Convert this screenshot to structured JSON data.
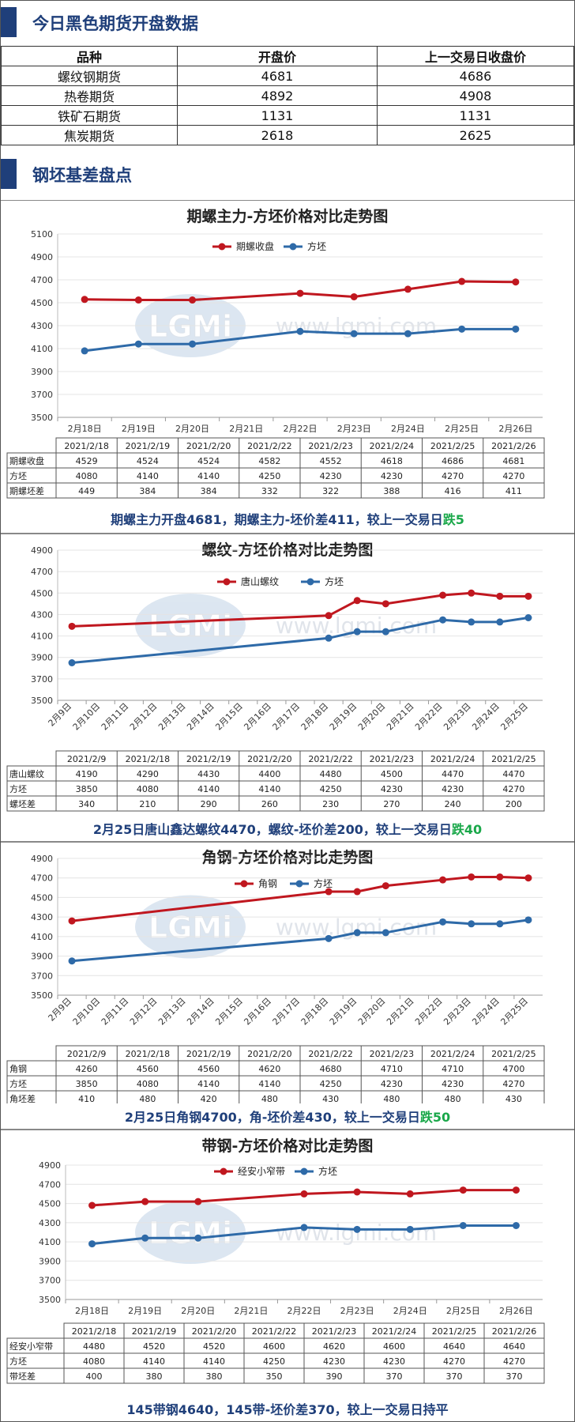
{
  "sections": {
    "open_data_title": "今日黑色期货开盘数据",
    "basis_title": "钢坯基差盘点"
  },
  "open_table": {
    "headers": [
      "品种",
      "开盘价",
      "上一交易日收盘价"
    ],
    "rows": [
      [
        "螺纹钢期货",
        "4681",
        "4686"
      ],
      [
        "热卷期货",
        "4892",
        "4908"
      ],
      [
        "铁矿石期货",
        "1131",
        "1131"
      ],
      [
        "焦炭期货",
        "2618",
        "2625"
      ]
    ]
  },
  "colors": {
    "red": "#c0171f",
    "blue": "#2e6aa8",
    "accent": "#1f3f7a",
    "down": "#1aa84a"
  },
  "watermark": {
    "logo": "LGMi",
    "url": "www.lgmi.com"
  },
  "chart_data": [
    {
      "type": "line",
      "title": "期螺主力-方坯价格对比走势图",
      "categories": [
        "2月18日",
        "2月19日",
        "2月20日",
        "2月21日",
        "2月22日",
        "2月23日",
        "2月24日",
        "2月25日",
        "2月26日"
      ],
      "series": [
        {
          "name": "期螺收盘",
          "color": "#c0171f",
          "values": [
            4529,
            4524,
            4524,
            null,
            4582,
            4552,
            4618,
            4686,
            4681
          ]
        },
        {
          "name": "方坯",
          "color": "#2e6aa8",
          "values": [
            4080,
            4140,
            4140,
            null,
            4250,
            4230,
            4230,
            4270,
            4270
          ]
        }
      ],
      "ylim": [
        3500,
        5100
      ],
      "yticks": [
        3500,
        3700,
        3900,
        4100,
        4300,
        4500,
        4700,
        4900,
        5100
      ],
      "table": {
        "headers": [
          "2021/2/18",
          "2021/2/19",
          "2021/2/20",
          "2021/2/22",
          "2021/2/23",
          "2021/2/24",
          "2021/2/25",
          "2021/2/26"
        ],
        "rows": [
          {
            "label": "期螺收盘",
            "values": [
              "4529",
              "4524",
              "4524",
              "4582",
              "4552",
              "4618",
              "4686",
              "4681"
            ]
          },
          {
            "label": "方坯",
            "values": [
              "4080",
              "4140",
              "4140",
              "4250",
              "4230",
              "4230",
              "4270",
              "4270"
            ]
          },
          {
            "label": "期螺坯差",
            "values": [
              "449",
              "384",
              "384",
              "332",
              "322",
              "388",
              "416",
              "411"
            ]
          }
        ]
      },
      "caption": {
        "main": "期螺主力开盘4681，期螺主力-坯价差411，较上一交易日",
        "change": "跌5"
      }
    },
    {
      "type": "line",
      "title": "螺纹-方坯价格对比走势图",
      "categories": [
        "2月9日",
        "2月10日",
        "2月11日",
        "2月12日",
        "2月13日",
        "2月14日",
        "2月15日",
        "2月16日",
        "2月17日",
        "2月18日",
        "2月19日",
        "2月20日",
        "2月21日",
        "2月22日",
        "2月23日",
        "2月24日",
        "2月25日"
      ],
      "series": [
        {
          "name": "唐山螺纹",
          "color": "#c0171f",
          "values": [
            4190,
            null,
            null,
            null,
            null,
            null,
            null,
            null,
            null,
            4290,
            4430,
            4400,
            null,
            4480,
            4500,
            4470,
            4470
          ]
        },
        {
          "name": "方坯",
          "color": "#2e6aa8",
          "values": [
            3850,
            null,
            null,
            null,
            null,
            null,
            null,
            null,
            null,
            4080,
            4140,
            4140,
            null,
            4250,
            4230,
            4230,
            4270
          ]
        }
      ],
      "ylim": [
        3500,
        4900
      ],
      "yticks": [
        3500,
        3700,
        3900,
        4100,
        4300,
        4500,
        4700,
        4900
      ],
      "table": {
        "headers": [
          "2021/2/9",
          "2021/2/18",
          "2021/2/19",
          "2021/2/20",
          "2021/2/22",
          "2021/2/23",
          "2021/2/24",
          "2021/2/25"
        ],
        "rows": [
          {
            "label": "唐山螺纹",
            "values": [
              "4190",
              "4290",
              "4430",
              "4400",
              "4480",
              "4500",
              "4470",
              "4470"
            ]
          },
          {
            "label": "方坯",
            "values": [
              "3850",
              "4080",
              "4140",
              "4140",
              "4250",
              "4230",
              "4230",
              "4270"
            ]
          },
          {
            "label": "螺坯差",
            "values": [
              "340",
              "210",
              "290",
              "260",
              "230",
              "270",
              "240",
              "200"
            ]
          }
        ]
      },
      "caption": {
        "main": "2月25日唐山鑫达螺纹4470，螺纹-坯价差200，较上一交易日",
        "change": "跌40"
      }
    },
    {
      "type": "line",
      "title": "角钢-方坯价格对比走势图",
      "categories": [
        "2月9日",
        "2月10日",
        "2月11日",
        "2月12日",
        "2月13日",
        "2月14日",
        "2月15日",
        "2月16日",
        "2月17日",
        "2月18日",
        "2月19日",
        "2月20日",
        "2月21日",
        "2月22日",
        "2月23日",
        "2月24日",
        "2月25日"
      ],
      "series": [
        {
          "name": "角钢",
          "color": "#c0171f",
          "values": [
            4260,
            null,
            null,
            null,
            null,
            null,
            null,
            null,
            null,
            4560,
            4560,
            4620,
            null,
            4680,
            4710,
            4710,
            4700
          ]
        },
        {
          "name": "方坯",
          "color": "#2e6aa8",
          "values": [
            3850,
            null,
            null,
            null,
            null,
            null,
            null,
            null,
            null,
            4080,
            4140,
            4140,
            null,
            4250,
            4230,
            4230,
            4270
          ]
        }
      ],
      "ylim": [
        3500,
        4900
      ],
      "yticks": [
        3500,
        3700,
        3900,
        4100,
        4300,
        4500,
        4700,
        4900
      ],
      "table": {
        "headers": [
          "2021/2/9",
          "2021/2/18",
          "2021/2/19",
          "2021/2/20",
          "2021/2/22",
          "2021/2/23",
          "2021/2/24",
          "2021/2/25"
        ],
        "rows": [
          {
            "label": "角钢",
            "values": [
              "4260",
              "4560",
              "4560",
              "4620",
              "4680",
              "4710",
              "4710",
              "4700"
            ]
          },
          {
            "label": "方坯",
            "values": [
              "3850",
              "4080",
              "4140",
              "4140",
              "4250",
              "4230",
              "4230",
              "4270"
            ]
          },
          {
            "label": "角坯差",
            "values": [
              "410",
              "480",
              "420",
              "480",
              "430",
              "480",
              "480",
              "430"
            ]
          }
        ]
      },
      "caption": {
        "main": "2月25日角钢4700，角-坯价差430，较上一交易日",
        "change": "跌50"
      }
    },
    {
      "type": "line",
      "title": "带钢-方坯价格对比走势图",
      "categories": [
        "2月18日",
        "2月19日",
        "2月20日",
        "2月21日",
        "2月22日",
        "2月23日",
        "2月24日",
        "2月25日",
        "2月26日"
      ],
      "series": [
        {
          "name": "经安小窄带",
          "color": "#c0171f",
          "values": [
            4480,
            4520,
            4520,
            null,
            4600,
            4620,
            4600,
            4640,
            4640
          ]
        },
        {
          "name": "方坯",
          "color": "#2e6aa8",
          "values": [
            4080,
            4140,
            4140,
            null,
            4250,
            4230,
            4230,
            4270,
            4270
          ]
        }
      ],
      "ylim": [
        3500,
        4900
      ],
      "yticks": [
        3500,
        3700,
        3900,
        4100,
        4300,
        4500,
        4700,
        4900
      ],
      "table": {
        "headers": [
          "2021/2/18",
          "2021/2/19",
          "2021/2/20",
          "2021/2/22",
          "2021/2/23",
          "2021/2/24",
          "2021/2/25",
          "2021/2/26"
        ],
        "rows": [
          {
            "label": "经安小窄带",
            "values": [
              "4480",
              "4520",
              "4520",
              "4600",
              "4620",
              "4600",
              "4640",
              "4640"
            ]
          },
          {
            "label": "方坯",
            "values": [
              "4080",
              "4140",
              "4140",
              "4250",
              "4230",
              "4230",
              "4270",
              "4270"
            ]
          },
          {
            "label": "带坯差",
            "values": [
              "400",
              "380",
              "380",
              "350",
              "390",
              "370",
              "370",
              "370"
            ]
          }
        ]
      },
      "caption": {
        "main": "145带钢4640，145带-坯价差370，较上一交易日持平",
        "change": ""
      }
    }
  ]
}
